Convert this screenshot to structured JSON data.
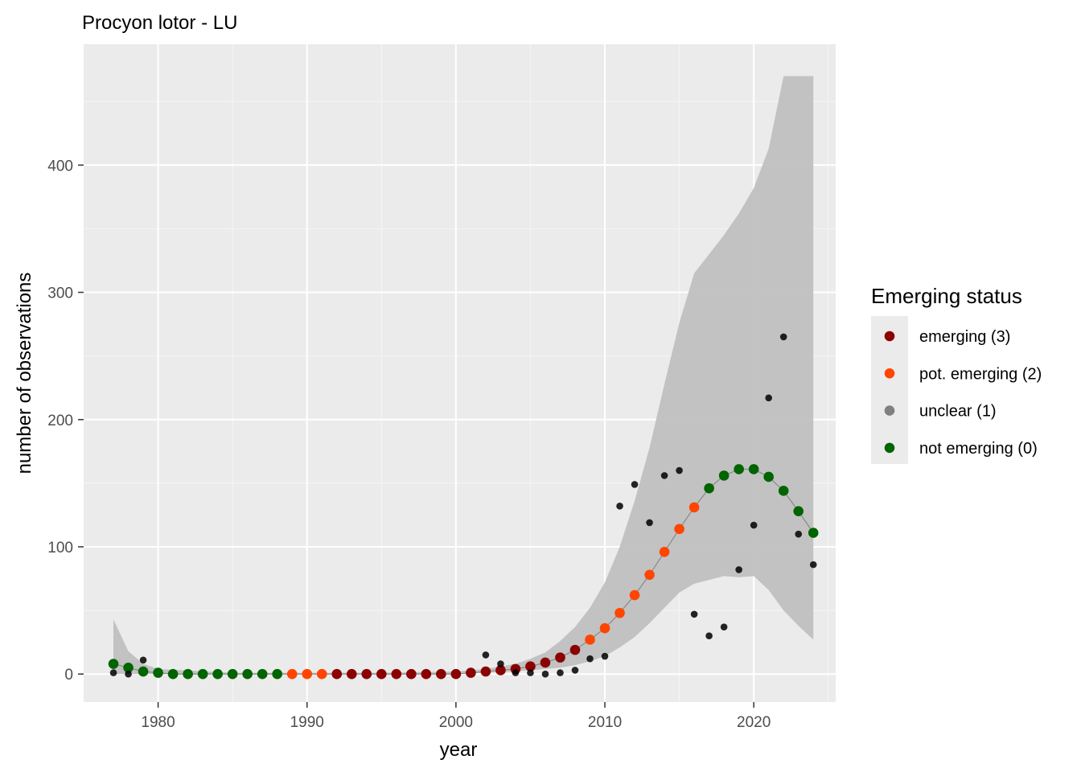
{
  "chart_data": {
    "type": "scatter",
    "title": "Procyon lotor - LU",
    "xlabel": "year",
    "ylabel": "number of observations",
    "xlim": [
      1975,
      2025.5
    ],
    "ylim": [
      -22,
      495
    ],
    "x_ticks": [
      1980,
      1990,
      2000,
      2010,
      2020
    ],
    "y_ticks": [
      0,
      100,
      200,
      300,
      400
    ],
    "grid": true,
    "legend": {
      "title": "Emerging status",
      "position": "right",
      "items": [
        {
          "label": "emerging (3)",
          "color": "#8B0000"
        },
        {
          "label": "pot. emerging (2)",
          "color": "#FF4500"
        },
        {
          "label": "unclear (1)",
          "color": "#808080"
        },
        {
          "label": "not emerging (0)",
          "color": "#006400"
        }
      ]
    },
    "observed": {
      "x": [
        1977,
        1978,
        1979,
        2002,
        2003,
        2004,
        2005,
        2006,
        2007,
        2008,
        2009,
        2010,
        2011,
        2012,
        2013,
        2014,
        2015,
        2016,
        2017,
        2018,
        2019,
        2020,
        2021,
        2022,
        2023,
        2024
      ],
      "y": [
        1,
        0,
        11,
        15,
        8,
        1,
        1,
        0,
        1,
        3,
        12,
        14,
        132,
        149,
        119,
        156,
        160,
        47,
        30,
        37,
        82,
        117,
        217,
        265,
        110,
        86
      ]
    },
    "fitted": {
      "x": [
        1977,
        1978,
        1979,
        1980,
        1981,
        1982,
        1983,
        1984,
        1985,
        1986,
        1987,
        1988,
        1989,
        1990,
        1991,
        1992,
        1993,
        1994,
        1995,
        1996,
        1997,
        1998,
        1999,
        2000,
        2001,
        2002,
        2003,
        2004,
        2005,
        2006,
        2007,
        2008,
        2009,
        2010,
        2011,
        2012,
        2013,
        2014,
        2015,
        2016,
        2017,
        2018,
        2019,
        2020,
        2021,
        2022,
        2023,
        2024
      ],
      "y": [
        8,
        5,
        2,
        1,
        0,
        0,
        0,
        0,
        0,
        0,
        0,
        0,
        0,
        0,
        0,
        0,
        0,
        0,
        0,
        0,
        0,
        0,
        0,
        0,
        1,
        2,
        3,
        4,
        6,
        9,
        13,
        19,
        27,
        36,
        48,
        62,
        78,
        96,
        114,
        131,
        146,
        156,
        161,
        161,
        155,
        144,
        128,
        111
      ],
      "status": [
        0,
        0,
        0,
        0,
        0,
        0,
        0,
        0,
        0,
        0,
        0,
        0,
        2,
        2,
        2,
        3,
        3,
        3,
        3,
        3,
        3,
        3,
        3,
        3,
        3,
        3,
        3,
        3,
        3,
        3,
        3,
        3,
        2,
        2,
        2,
        2,
        2,
        2,
        2,
        2,
        0,
        0,
        0,
        0,
        0,
        0,
        0,
        0
      ]
    },
    "confidence_band": {
      "x": [
        1977,
        1978,
        1979,
        1980,
        1985,
        1990,
        1995,
        2000,
        2002,
        2004,
        2005,
        2006,
        2007,
        2008,
        2009,
        2010,
        2011,
        2012,
        2013,
        2014,
        2015,
        2016,
        2017,
        2018,
        2019,
        2020,
        2021,
        2022,
        2023,
        2024
      ],
      "lower": [
        0,
        0,
        0,
        0,
        0,
        0,
        0,
        0,
        1,
        2,
        3,
        4,
        5,
        7,
        10,
        14,
        21,
        29,
        40,
        52,
        64,
        71,
        74,
        77,
        76,
        77,
        66,
        50,
        38,
        27
      ],
      "upper": [
        43,
        18,
        8,
        4,
        1,
        1,
        1,
        2,
        4,
        8,
        12,
        17,
        26,
        37,
        52,
        72,
        100,
        136,
        178,
        228,
        276,
        315,
        330,
        345,
        362,
        382,
        413,
        470,
        470,
        470
      ]
    }
  }
}
